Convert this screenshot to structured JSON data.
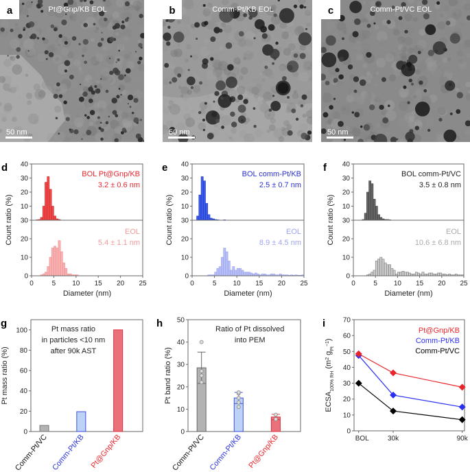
{
  "tem_images": [
    {
      "letter": "a",
      "caption": "Pt@Gnp/KB EOL",
      "scale_bar": "50 nm"
    },
    {
      "letter": "b",
      "caption": "Comm-Pt/KB EOL",
      "scale_bar": "50 nm"
    },
    {
      "letter": "c",
      "caption": "Comm-Pt/VC EOL",
      "scale_bar": "50 nm"
    }
  ],
  "chart_data": [
    {
      "panel": "d",
      "type": "bar",
      "subtype": "histogram",
      "xlabel": "Diameter (nm)",
      "ylabel": "Count ratio (%)",
      "xlim": [
        0,
        25
      ],
      "xticks": [
        0,
        5,
        10,
        15,
        20,
        25
      ],
      "upper": {
        "ylim": [
          0,
          40
        ],
        "yticks": [
          10,
          20,
          30,
          40
        ]
      },
      "lower": {
        "ylim": [
          0,
          30
        ],
        "yticks": [
          0,
          10,
          20,
          30
        ]
      },
      "bin_width": 0.5,
      "series": [
        {
          "name": "BOL Pt@Gnp/KB",
          "stat": "3.2 ± 0.6 nm",
          "x_start": 1.0,
          "fill": "#f04a4a",
          "stroke": "#c01818",
          "text": "#e8262c",
          "values": [
            0.3,
            0.5,
            2,
            10,
            27,
            31,
            22,
            10,
            3,
            1,
            0.5
          ]
        },
        {
          "name": "EOL",
          "stat": "5.4 ± 1.1 nm",
          "x_start": 2.0,
          "fill": "#f8b4b4",
          "stroke": "#ee7c7c",
          "text": "#f29a9a",
          "values": [
            0.5,
            1,
            2,
            5,
            10,
            15,
            16,
            15,
            19,
            13,
            7,
            4,
            1,
            1,
            0.5,
            0.5,
            0.5
          ]
        }
      ]
    },
    {
      "panel": "e",
      "type": "bar",
      "subtype": "histogram",
      "xlabel": "Diameter (nm)",
      "ylabel": "Count ratio (%)",
      "xlim": [
        0,
        25
      ],
      "xticks": [
        0,
        5,
        10,
        15,
        20,
        25
      ],
      "upper": {
        "ylim": [
          0,
          40
        ],
        "yticks": [
          10,
          20,
          30,
          40
        ]
      },
      "lower": {
        "ylim": [
          0,
          30
        ],
        "yticks": [
          0,
          10,
          20,
          30
        ]
      },
      "bin_width": 0.5,
      "series": [
        {
          "name": "BOL comm-Pt/KB",
          "stat": "2.5 ± 0.7 nm",
          "x_start": 1.0,
          "fill": "#3a5be8",
          "stroke": "#1a2fc0",
          "text": "#2a2fd0",
          "values": [
            3,
            18,
            31,
            28,
            12,
            4,
            1.5,
            1,
            0.5,
            0.3,
            0,
            0,
            0.3
          ]
        },
        {
          "name": "EOL",
          "stat": "8.9 ± 4.5 nm",
          "x_start": 3.5,
          "fill": "#b8bff5",
          "stroke": "#8f98ec",
          "text": "#9ea4ef",
          "values": [
            0.5,
            0.5,
            0.5,
            2,
            4,
            5,
            10,
            15,
            13,
            8,
            3,
            5,
            3,
            4,
            4,
            3,
            2,
            2,
            2,
            1.5,
            1,
            1.5,
            1,
            0.5,
            1,
            1,
            0.5,
            0.5,
            1,
            1,
            0.5,
            0.5,
            1,
            0.5,
            0.5,
            0.5,
            0.3,
            0.5,
            0.3,
            0.5,
            0.3,
            0.3,
            0.5
          ]
        }
      ]
    },
    {
      "panel": "f",
      "type": "bar",
      "subtype": "histogram",
      "xlabel": "Diameter (nm)",
      "ylabel": "Count ratio (%)",
      "xlim": [
        0,
        25
      ],
      "xticks": [
        0,
        5,
        10,
        15,
        20,
        25
      ],
      "upper": {
        "ylim": [
          0,
          40
        ],
        "yticks": [
          10,
          20,
          30,
          40
        ]
      },
      "lower": {
        "ylim": [
          0,
          30
        ],
        "yticks": [
          0,
          10,
          20,
          30
        ]
      },
      "bin_width": 0.5,
      "series": [
        {
          "name": "BOL comm-Pt/VC",
          "stat": "3.5 ± 0.8 nm",
          "x_start": 2.0,
          "fill": "#666666",
          "stroke": "#333333",
          "text": "#222222",
          "values": [
            0.5,
            5,
            20,
            28,
            26,
            15,
            10,
            4,
            2,
            1,
            0.5,
            0.5,
            0.3
          ]
        },
        {
          "name": "EOL",
          "stat": "10.6 ± 6.8 nm",
          "x_start": 3.0,
          "fill": "#cccccc",
          "stroke": "#666666",
          "text": "#aaaaaa",
          "values": [
            0.5,
            1,
            2,
            3,
            8,
            9,
            10,
            9,
            7,
            6,
            6,
            4,
            3,
            1,
            2,
            2,
            2.5,
            2,
            2,
            1.5,
            1,
            1,
            2,
            1.5,
            1,
            2,
            1,
            1,
            1.5,
            1.5,
            1,
            1,
            1.5,
            1.5,
            1,
            1,
            0.5,
            1,
            0.5,
            0.5,
            1,
            0.5,
            0.5,
            0.5
          ]
        }
      ]
    },
    {
      "panel": "g",
      "type": "bar",
      "title": [
        "Pt mass ratio",
        "in particles <10 nm",
        "after 90k AST"
      ],
      "ylabel": "Pt mass ratio (%)",
      "ylim": [
        0,
        110
      ],
      "yticks": [
        0,
        20,
        40,
        60,
        80,
        100
      ],
      "categories": [
        "Comm-Pt/VC",
        "Comm-Pt/KB",
        "Pt@Gnp/KB"
      ],
      "values": [
        6,
        19.5,
        100
      ],
      "fills": [
        "#b3b3b3",
        "#bcd3f7",
        "#ea717b"
      ],
      "strokes": [
        "#777777",
        "#3a4de0",
        "#e0303a"
      ],
      "label_colors": [
        "#111111",
        "#2a35d8",
        "#e8262c"
      ]
    },
    {
      "panel": "h",
      "type": "bar",
      "title": [
        "Ratio of Pt dissolved",
        "into PEM"
      ],
      "ylabel": "Pt band ratio (%)",
      "ylim": [
        0,
        50
      ],
      "yticks": [
        0,
        10,
        20,
        30,
        40,
        50
      ],
      "categories": [
        "Comm-Pt/VC",
        "Comm-Pt/KB",
        "Pt@Gnp/KB"
      ],
      "values": [
        28.5,
        15,
        6.5
      ],
      "errors": [
        7,
        2.5,
        1.2
      ],
      "points": [
        [
          22,
          25,
          27,
          40
        ],
        [
          11,
          13,
          15,
          17,
          17.5
        ],
        [
          5.5,
          7.5
        ]
      ],
      "fills": [
        "#b3b3b3",
        "#bcd3f7",
        "#ea717b"
      ],
      "strokes": [
        "#666666",
        "#3a4de0",
        "#e0303a"
      ],
      "label_colors": [
        "#111111",
        "#2a35d8",
        "#e8262c"
      ]
    },
    {
      "panel": "i",
      "type": "line",
      "ylabel_parts": [
        "ECSA",
        "100% RH",
        " (m",
        "2",
        " g",
        "Pt",
        "−1",
        ")"
      ],
      "ylim": [
        0,
        70
      ],
      "yticks": [
        0,
        10,
        20,
        30,
        40,
        50,
        60,
        70
      ],
      "xlim": [
        -4,
        92
      ],
      "x": [
        0,
        30,
        90
      ],
      "xtick_labels": [
        "BOL",
        "30k",
        "90k"
      ],
      "series": [
        {
          "name": "Pt@Gnp/KB",
          "color": "#e8262c",
          "values": [
            48.5,
            36.5,
            27.5
          ]
        },
        {
          "name": "Comm-Pt/KB",
          "color": "#2a2ff0",
          "values": [
            47.5,
            22.5,
            15
          ]
        },
        {
          "name": "Comm-Pt/VC",
          "color": "#000000",
          "values": [
            30,
            12.5,
            7
          ]
        }
      ]
    }
  ]
}
